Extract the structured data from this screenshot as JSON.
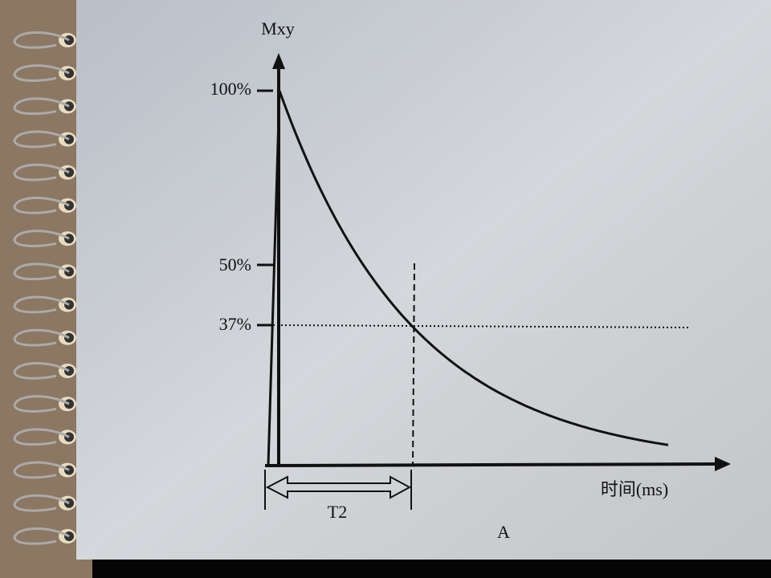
{
  "figure": {
    "y_axis_label": "Mxy",
    "y_tick_labels": [
      "100%",
      "50%",
      "37%"
    ],
    "x_axis_label": "时间(ms)",
    "interval_label": "T2",
    "panel_label": "A"
  }
}
